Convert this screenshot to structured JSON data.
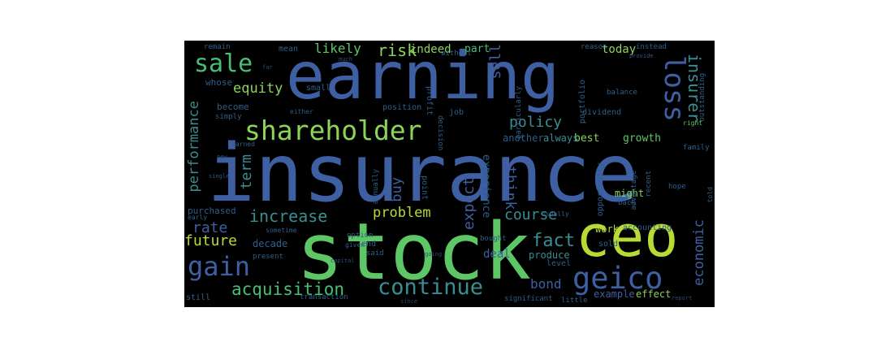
{
  "word_cloud": {
    "big": {
      "earning": "earning",
      "insurance": "insurance",
      "stock": "stock",
      "ceo": "ceo",
      "shareholder": "shareholder",
      "geico": "geico",
      "gain": "gain",
      "continue": "continue",
      "sale": "sale",
      "loss": "loss",
      "acquisition": "acquisition",
      "increase": "increase",
      "future": "future",
      "rate": "rate",
      "problem": "problem",
      "course": "course",
      "fact": "fact",
      "risk": "risk",
      "equity": "equity",
      "policy": "policy",
      "economic": "economic",
      "performance": "performance",
      "insurer": "insurer",
      "sell": "sell",
      "expect": "expect",
      "buy": "buy",
      "term": "term",
      "think": "think",
      "bond": "bond",
      "likely": "likely",
      "indeed": "indeed",
      "part": "part",
      "today": "today",
      "growth": "growth",
      "deal": "deal",
      "experience": "experience",
      "best": "best",
      "always": "always",
      "another": "another",
      "decade": "decade",
      "produce": "produce",
      "example": "example",
      "effect": "effect",
      "might": "might",
      "work": "work",
      "whose": "whose",
      "become": "become",
      "small": "small",
      "mean": "mean",
      "purchased": "purchased",
      "end": "end",
      "sold": "sold",
      "still": "still",
      "point": "point",
      "level": "level",
      "opportunity": "opportunity",
      "accounting": "accounting",
      "position": "position",
      "job": "job",
      "profit": "profit",
      "portfolio": "portfolio",
      "dividend": "dividend",
      "reason": "reason",
      "instead": "instead",
      "without": "without",
      "option": "option",
      "bought": "bought",
      "transaction": "transaction",
      "significant": "significant",
      "family": "family",
      "hope": "hope",
      "outstanding": "outstanding",
      "balance": "balance",
      "simply": "simply",
      "remain": "remain",
      "decision": "decision",
      "annually": "annually",
      "particularly": "particularly",
      "little": "little",
      "recent": "recent",
      "said": "said",
      "back": "back",
      "advantage": "advantage",
      "present": "present",
      "earned": "earned",
      "early": "early",
      "usually": "usually",
      "given": "given",
      "right": "right",
      "told": "told",
      "either": "either",
      "sometime": "sometime",
      "provide": "provide",
      "single": "single",
      "far": "far",
      "much": "much",
      "new": "new",
      "capital": "capital",
      "going": "going",
      "since": "since",
      "report": "report"
    }
  }
}
